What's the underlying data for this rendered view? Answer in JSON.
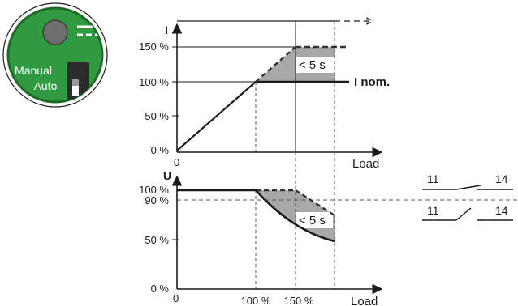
{
  "badge": {
    "mode_manual": "Manual",
    "mode_auto": "Auto",
    "colors": {
      "board": "#2f9a3f",
      "rim": "#1f6b2a",
      "knob": "#6e6e6e",
      "switch": "#2b2b2b"
    },
    "icons": [
      "knob-icon",
      "dc-symbol-icon",
      "slide-switch-icon"
    ]
  },
  "top_chart": {
    "y_axis_label": "I",
    "x_axis_label": "Load",
    "y_ticks": [
      "150 %",
      "100 %",
      "50 %",
      "0 %"
    ],
    "x_tick_zero": "0",
    "nominal_label": "I nom.",
    "time_limit": "< 5 s"
  },
  "bottom_chart": {
    "y_axis_label": "U",
    "x_axis_label": "Load",
    "y_ticks": [
      "100 %",
      "90 %",
      "50 %",
      "0 %"
    ],
    "x_ticks": [
      "0",
      "100 %",
      "150 %"
    ],
    "time_limit": "< 5 s"
  },
  "contacts": {
    "closed": {
      "left_terminal": "11",
      "right_terminal": "14"
    },
    "open": {
      "left_terminal": "11",
      "right_terminal": "14"
    }
  },
  "colors": {
    "line": "#1a1a1a",
    "shade": "#a8a8a8",
    "dashed": "#333333"
  }
}
